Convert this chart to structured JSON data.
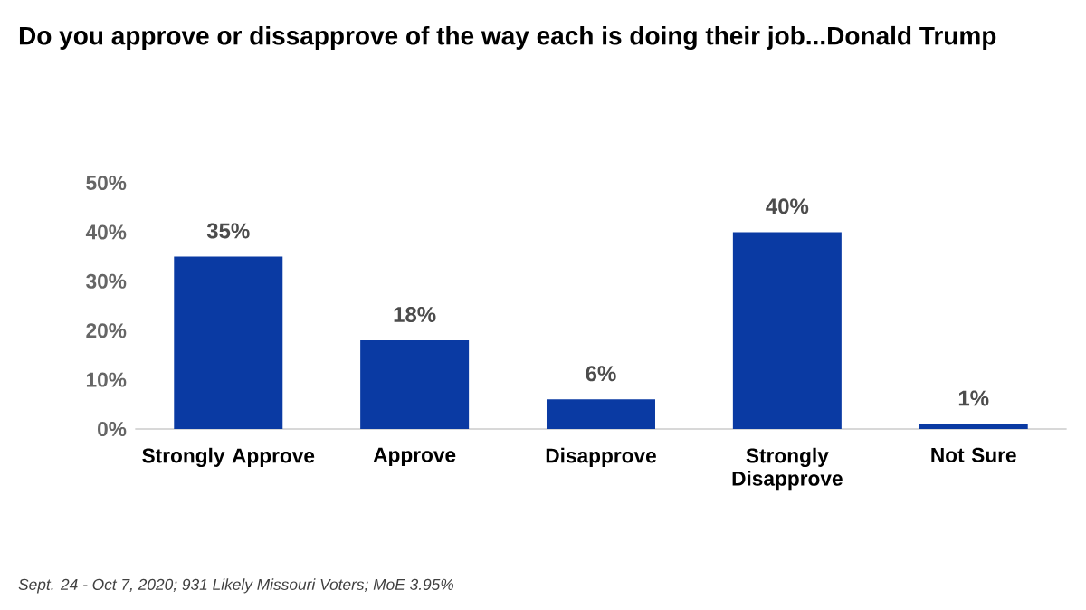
{
  "chart_data": {
    "type": "bar",
    "title": "Do you approve or dissapprove of the way each is doing their job...Donald Trump",
    "categories": [
      "Strongly Approve",
      "Approve",
      "Disapprove",
      "Strongly Disapprove",
      "Not Sure"
    ],
    "values": [
      35,
      18,
      6,
      40,
      1
    ],
    "color": "#0a3aa3",
    "value_labels": [
      "35%",
      "18%",
      "6%",
      "40%",
      "1%"
    ],
    "ylim": [
      0,
      50
    ],
    "yticks": [
      {
        "value": 0,
        "label": "0%"
      },
      {
        "value": 10,
        "label": "10%"
      },
      {
        "value": 20,
        "label": "20%"
      },
      {
        "value": 30,
        "label": "30%"
      },
      {
        "value": 40,
        "label": "40%"
      },
      {
        "value": 50,
        "label": "50%"
      }
    ],
    "annotations": [
      "Sept. 24 - Oct 7, 2020; 931 Likely Missouri Voters; MoE  3.95%"
    ]
  }
}
